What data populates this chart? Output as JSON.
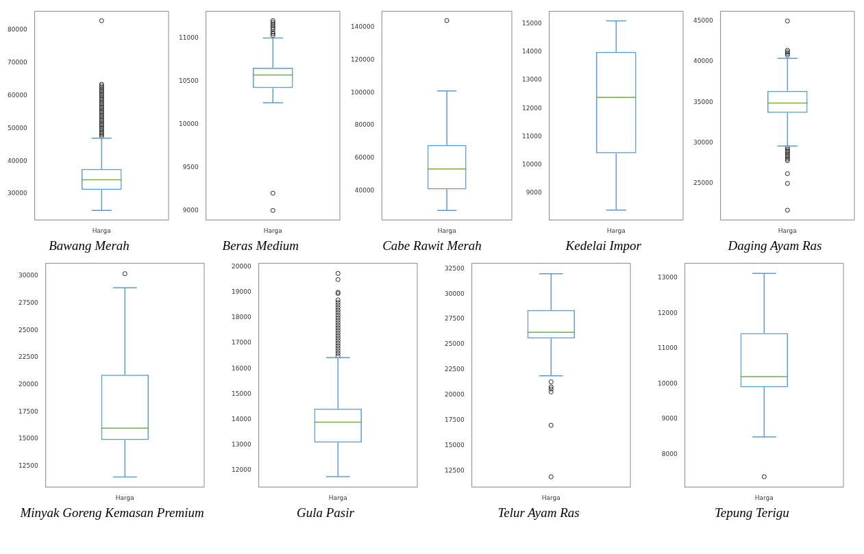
{
  "chart_data": [
    {
      "type": "box",
      "title": "Bawang Merah",
      "categories": [
        "Harga"
      ],
      "color": "#5b9bd5",
      "marker": "circle",
      "ylim": [
        22000,
        85800
      ],
      "yticks": [
        30000,
        40000,
        50000,
        60000,
        70000,
        80000
      ],
      "boxes": [
        {
          "low": 24900,
          "q1": 31200,
          "median": 34300,
          "q3": 37600,
          "high": 47000,
          "outliers": [
            47500,
            48000,
            48500,
            49000,
            49500,
            50000,
            50500,
            51000,
            51500,
            52000,
            52500,
            53000,
            53500,
            54000,
            54500,
            55000,
            55500,
            56000,
            56500,
            57000,
            57500,
            58000,
            58500,
            59000,
            59500,
            60000,
            60500,
            61000,
            61500,
            62000,
            62500,
            63000,
            63500,
            82900
          ]
        }
      ]
    },
    {
      "type": "box",
      "title": "Beras Medium",
      "categories": [
        "Harga"
      ],
      "color": "#5b9bd5",
      "marker": "circle",
      "ylim": [
        8890,
        11310
      ],
      "yticks": [
        9000,
        9500,
        10000,
        10500,
        11000
      ],
      "boxes": [
        {
          "low": 10250,
          "q1": 10420,
          "median": 10570,
          "q3": 10655,
          "high": 11000,
          "outliers": [
            9000,
            9200,
            11030,
            11050,
            11070,
            11100,
            11120,
            11140,
            11160,
            11180,
            11200
          ]
        }
      ]
    },
    {
      "type": "box",
      "title": "Cabe Rawit Merah",
      "categories": [
        "Harga"
      ],
      "color": "#5b9bd5",
      "marker": "circle",
      "ylim": [
        22200,
        149700
      ],
      "yticks": [
        40000,
        60000,
        80000,
        100000,
        120000,
        140000
      ],
      "boxes": [
        {
          "low": 28000,
          "q1": 40900,
          "median": 53300,
          "q3": 68000,
          "high": 101000,
          "outliers": [
            144000
          ]
        }
      ]
    },
    {
      "type": "box",
      "title": "Kedelai Impor",
      "categories": [
        "Harga"
      ],
      "color": "#5b9bd5",
      "marker": "circle",
      "ylim": [
        8050,
        15440
      ],
      "yticks": [
        9000,
        10000,
        11000,
        12000,
        13000,
        14000,
        15000
      ],
      "boxes": [
        {
          "low": 8400,
          "q1": 10410,
          "median": 12390,
          "q3": 14000,
          "high": 15100
        }
      ]
    },
    {
      "type": "box",
      "title": "Daging Ayam Ras",
      "categories": [
        "Harga"
      ],
      "color": "#5b9bd5",
      "marker": "circle",
      "ylim": [
        20500,
        46200
      ],
      "yticks": [
        25000,
        30000,
        35000,
        40000,
        45000
      ],
      "boxes": [
        {
          "low": 29600,
          "q1": 33700,
          "median": 34900,
          "q3": 36400,
          "high": 40400,
          "outliers": [
            21700,
            25000,
            26200,
            27800,
            28000,
            28200,
            28400,
            28600,
            28800,
            29000,
            29200,
            29400,
            40800,
            41000,
            41200,
            41400,
            45000
          ]
        }
      ]
    },
    {
      "type": "box",
      "title": "Minyak Goreng Kemasan Premium",
      "categories": [
        "Harga"
      ],
      "color": "#5b9bd5",
      "marker": "circle",
      "ylim": [
        10580,
        31160
      ],
      "yticks": [
        12500,
        15000,
        17500,
        20000,
        22500,
        25000,
        27500,
        30000
      ],
      "boxes": [
        {
          "low": 11500,
          "q1": 14900,
          "median": 16000,
          "q3": 20900,
          "high": 28900,
          "outliers": [
            30200
          ]
        }
      ]
    },
    {
      "type": "box",
      "title": "Gula Pasir",
      "categories": [
        "Harga"
      ],
      "color": "#5b9bd5",
      "marker": "circle",
      "ylim": [
        11350,
        20140
      ],
      "yticks": [
        12000,
        13000,
        14000,
        15000,
        16000,
        17000,
        18000,
        19000,
        20000
      ],
      "boxes": [
        {
          "low": 11760,
          "q1": 13100,
          "median": 13900,
          "q3": 14430,
          "high": 16430,
          "outliers": [
            16500,
            16600,
            16700,
            16800,
            16900,
            17000,
            17100,
            17200,
            17300,
            17400,
            17500,
            17600,
            17700,
            17800,
            17900,
            18000,
            18100,
            18200,
            18300,
            18400,
            18500,
            18600,
            18700,
            18950,
            19000,
            19500,
            19740
          ]
        }
      ]
    },
    {
      "type": "box",
      "title": "Telur Ayam Ras",
      "categories": [
        "Harga"
      ],
      "color": "#5b9bd5",
      "marker": "circle",
      "ylim": [
        10890,
        33040
      ],
      "yticks": [
        12500,
        15000,
        17500,
        20000,
        22500,
        25000,
        27500,
        30000,
        32500
      ],
      "boxes": [
        {
          "low": 21900,
          "q1": 25600,
          "median": 26200,
          "q3": 28400,
          "high": 32000,
          "outliers": [
            11900,
            17000,
            20300,
            20600,
            20800,
            21300
          ]
        }
      ]
    },
    {
      "type": "box",
      "title": "Tepung Terigu",
      "categories": [
        "Harga"
      ],
      "color": "#5b9bd5",
      "marker": "circle",
      "ylim": [
        7080,
        13410
      ],
      "yticks": [
        8000,
        9000,
        10000,
        11000,
        12000,
        13000
      ],
      "boxes": [
        {
          "low": 8500,
          "q1": 9900,
          "median": 10200,
          "q3": 11430,
          "high": 13120,
          "outliers": [
            7370
          ]
        }
      ]
    }
  ]
}
